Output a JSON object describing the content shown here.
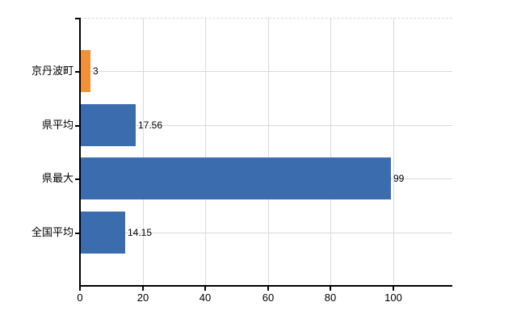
{
  "chart_data": {
    "type": "bar",
    "orientation": "horizontal",
    "title": "",
    "xlabel": "",
    "ylabel": "",
    "categories": [
      "京丹波町",
      "県平均",
      "県最大",
      "全国平均"
    ],
    "values": [
      3,
      17.56,
      99,
      14.15
    ],
    "value_labels": [
      "3",
      "17.56",
      "99",
      "14.15"
    ],
    "x_ticks": [
      0,
      20,
      40,
      60,
      80,
      100
    ],
    "x_tick_labels": [
      "0",
      "20",
      "40",
      "60",
      "80",
      "100"
    ],
    "xlim": [
      0,
      118.8
    ],
    "grid": true,
    "legend": "none",
    "colors": {
      "bars": [
        "#ee9137",
        "#3a6cae",
        "#3a6cae",
        "#3a6cae"
      ],
      "gridline": "#d9d9d9",
      "axis": "#000000",
      "text": "#000000",
      "background": "#ffffff"
    }
  }
}
